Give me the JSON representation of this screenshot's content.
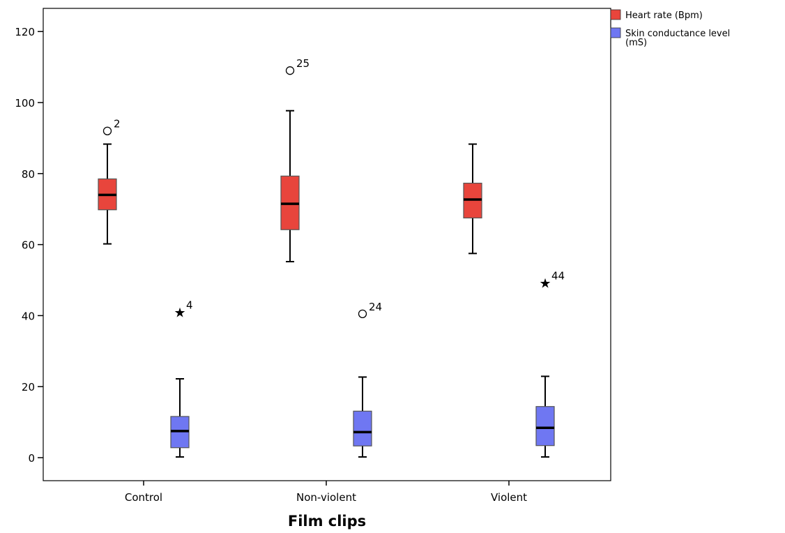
{
  "chart_data": {
    "type": "boxplot",
    "title": "",
    "xlabel": "Film clips",
    "ylabel": "",
    "ylim": [
      -6,
      126
    ],
    "yticks": [
      0,
      20,
      40,
      60,
      80,
      100,
      120
    ],
    "yticklabels": [
      "0",
      "20",
      "40",
      "60",
      "80",
      "100",
      "120"
    ],
    "categories": [
      "Control",
      "Non-violent",
      "Violent"
    ],
    "legend_position": "top-right, outside plot",
    "grid": false,
    "series": [
      {
        "name": "Heart rate (Bpm)",
        "color": "#e8453c",
        "boxes": [
          {
            "category": "Control",
            "whisker_low": 60.2,
            "q1": 69.8,
            "median": 74,
            "q3": 78.5,
            "whisker_high": 88.3,
            "outliers": [
              {
                "value": 92,
                "label": "2",
                "marker": "circle"
              }
            ]
          },
          {
            "category": "Non-violent",
            "whisker_low": 55.2,
            "q1": 64.2,
            "median": 71.5,
            "q3": 79.3,
            "whisker_high": 97.7,
            "outliers": [
              {
                "value": 109,
                "label": "25",
                "marker": "circle"
              }
            ]
          },
          {
            "category": "Violent",
            "whisker_low": 57.5,
            "q1": 67.5,
            "median": 72.7,
            "q3": 77.3,
            "whisker_high": 88.3,
            "outliers": []
          }
        ]
      },
      {
        "name": "Skin conductance level (mS)",
        "color": "#6f77f2",
        "boxes": [
          {
            "category": "Control",
            "whisker_low": 0.2,
            "q1": 2.8,
            "median": 7.5,
            "q3": 11.6,
            "whisker_high": 22.2,
            "outliers": [
              {
                "value": 41,
                "label": "4",
                "marker": "star"
              }
            ]
          },
          {
            "category": "Non-violent",
            "whisker_low": 0.2,
            "q1": 3.3,
            "median": 7.2,
            "q3": 13.1,
            "whisker_high": 22.7,
            "outliers": [
              {
                "value": 40.5,
                "label": "24",
                "marker": "circle"
              }
            ]
          },
          {
            "category": "Violent",
            "whisker_low": 0.2,
            "q1": 3.4,
            "median": 8.4,
            "q3": 14.4,
            "whisker_high": 22.9,
            "outliers": [
              {
                "value": 49.2,
                "label": "44",
                "marker": "star"
              }
            ]
          }
        ]
      }
    ],
    "legend": [
      {
        "label": "Heart rate (Bpm)",
        "color": "#e8453c"
      },
      {
        "label": "Skin conductance level (mS)",
        "color": "#6f77f2"
      }
    ]
  }
}
